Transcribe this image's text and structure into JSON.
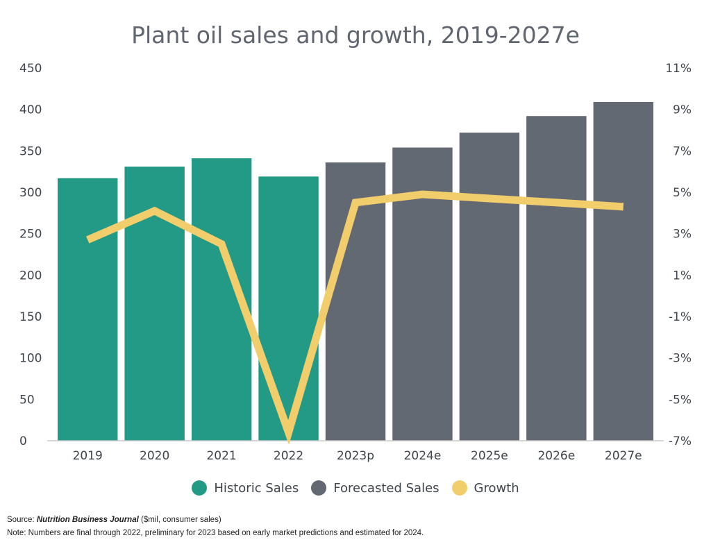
{
  "chart_data": {
    "type": "bar",
    "title": "Plant oil sales and growth, 2019-2027e",
    "categories": [
      "2019",
      "2020",
      "2021",
      "2022",
      "2023p",
      "2024e",
      "2025e",
      "2026e",
      "2027e"
    ],
    "series": [
      {
        "name": "Historic Sales",
        "type": "bar",
        "axis": "left",
        "color": "#239a85",
        "values": [
          317,
          331,
          341,
          319,
          null,
          null,
          null,
          null,
          null
        ]
      },
      {
        "name": "Forecasted Sales",
        "type": "bar",
        "axis": "left",
        "color": "#626972",
        "values": [
          null,
          null,
          null,
          null,
          336,
          354,
          372,
          392,
          409
        ]
      },
      {
        "name": "Growth",
        "type": "line",
        "axis": "right",
        "color": "#f2cd6b",
        "values": [
          2.7,
          4.1,
          2.5,
          -6.6,
          4.5,
          4.9,
          4.7,
          4.5,
          4.3
        ]
      }
    ],
    "ylim": [
      0,
      450
    ],
    "y_ticks": [
      "0",
      "50",
      "100",
      "150",
      "200",
      "250",
      "300",
      "350",
      "400",
      "450"
    ],
    "y2lim": [
      -7,
      11
    ],
    "y2_ticks": [
      "-7%",
      "-5%",
      "-3%",
      "-1%",
      "1%",
      "3%",
      "5%",
      "7%",
      "9%",
      "11%"
    ],
    "grid": false,
    "legend_position": "bottom"
  },
  "legend": [
    {
      "label": "Historic Sales",
      "color": "#239a85"
    },
    {
      "label": "Forecasted Sales",
      "color": "#626972"
    },
    {
      "label": "Growth",
      "color": "#f2cd6b"
    }
  ],
  "footer": {
    "source_prefix": "Source: ",
    "source_publication": "Nutrition Business Journal",
    "source_suffix": " ($mil, consumer sales)",
    "note": "Note: Numbers are final through 2022, preliminary for 2023 based on early market predictions and estimated for 2024."
  }
}
